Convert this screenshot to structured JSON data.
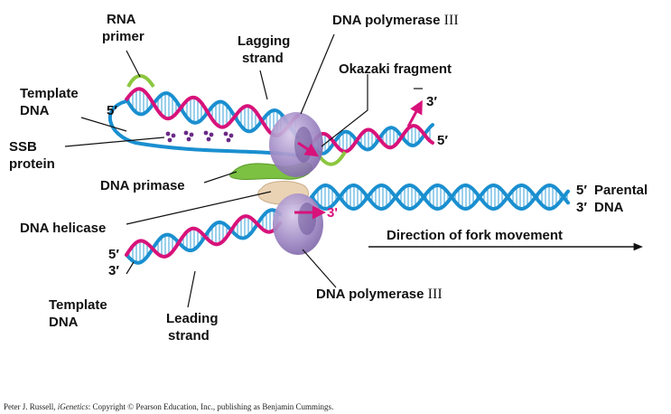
{
  "labels": {
    "rna_primer": [
      "RNA",
      "primer"
    ],
    "lagging_strand": [
      "Lagging",
      "strand"
    ],
    "dna_polymerase_top": [
      "DNA polymerase ",
      "III"
    ],
    "okazaki_fragment": "Okazaki fragment",
    "template_dna_top": [
      "Template",
      "DNA"
    ],
    "ssb_protein": [
      "SSB",
      "protein"
    ],
    "dna_primase": "DNA primase",
    "dna_helicase": "DNA helicase",
    "parental_dna": [
      "Parental",
      "DNA"
    ],
    "direction": "Direction of fork movement",
    "template_dna_bottom": [
      "Template",
      "DNA"
    ],
    "leading_strand": [
      "Leading",
      "strand"
    ],
    "dna_polymerase_bottom": [
      "DNA polymerase ",
      "III"
    ]
  },
  "ends": {
    "top_left_5": "5′",
    "okazaki_3": "3′",
    "okazaki_5": "5′",
    "parental_5": "5′",
    "parental_3": "3′",
    "leading_3": "3'",
    "bottom_left_5": "5′",
    "bottom_left_3": "3′"
  },
  "credit": {
    "prefix": "Peter J. Russell, ",
    "book": "iGenetics",
    "suffix": ": Copyright © Pearson Education, Inc., publishing as Benjamin Cummings."
  },
  "colors": {
    "blue": "#1a8fd0",
    "magenta": "#d8127a",
    "green": "#8cc63f",
    "purple": "#9e86c0",
    "primase": "#7cc142",
    "helicase": "#ead3b4",
    "ssb": "#6a2a87"
  }
}
